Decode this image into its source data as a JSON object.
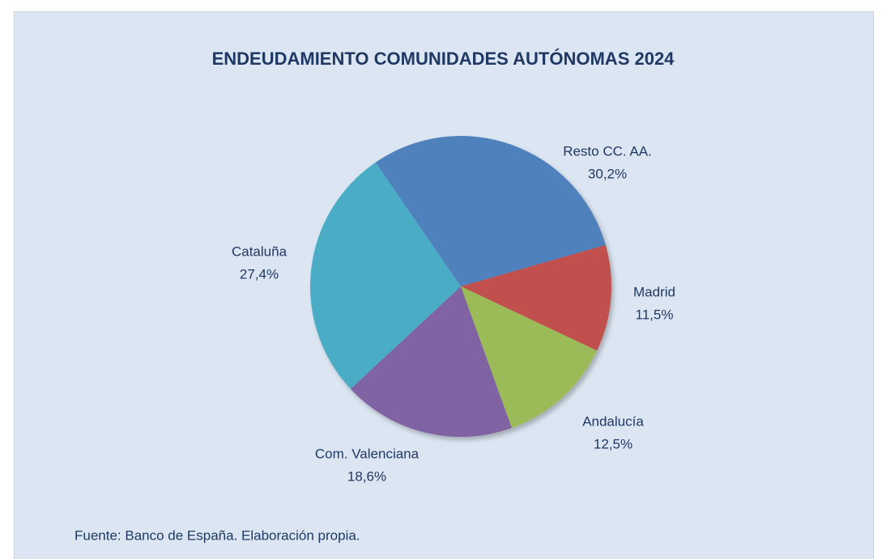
{
  "chart_data": {
    "type": "pie",
    "title": "ENDEUDAMIENTO COMUNIDADES AUTÓNOMAS 2024",
    "categories": [
      "Madrid",
      "Andalucía",
      "Com. Valenciana",
      "Cataluña",
      "Resto CC. AA."
    ],
    "values": [
      11.5,
      12.5,
      18.6,
      27.4,
      30.2
    ],
    "value_labels": [
      "11,5%",
      "12,5%",
      "18,6%",
      "27,4%",
      "30,2%"
    ],
    "colors": [
      "#c0504d",
      "#9bbb59",
      "#8064a2",
      "#4bacc6",
      "#4f81bd"
    ],
    "source": "Fuente: Banco de España. Elaboración propia."
  }
}
